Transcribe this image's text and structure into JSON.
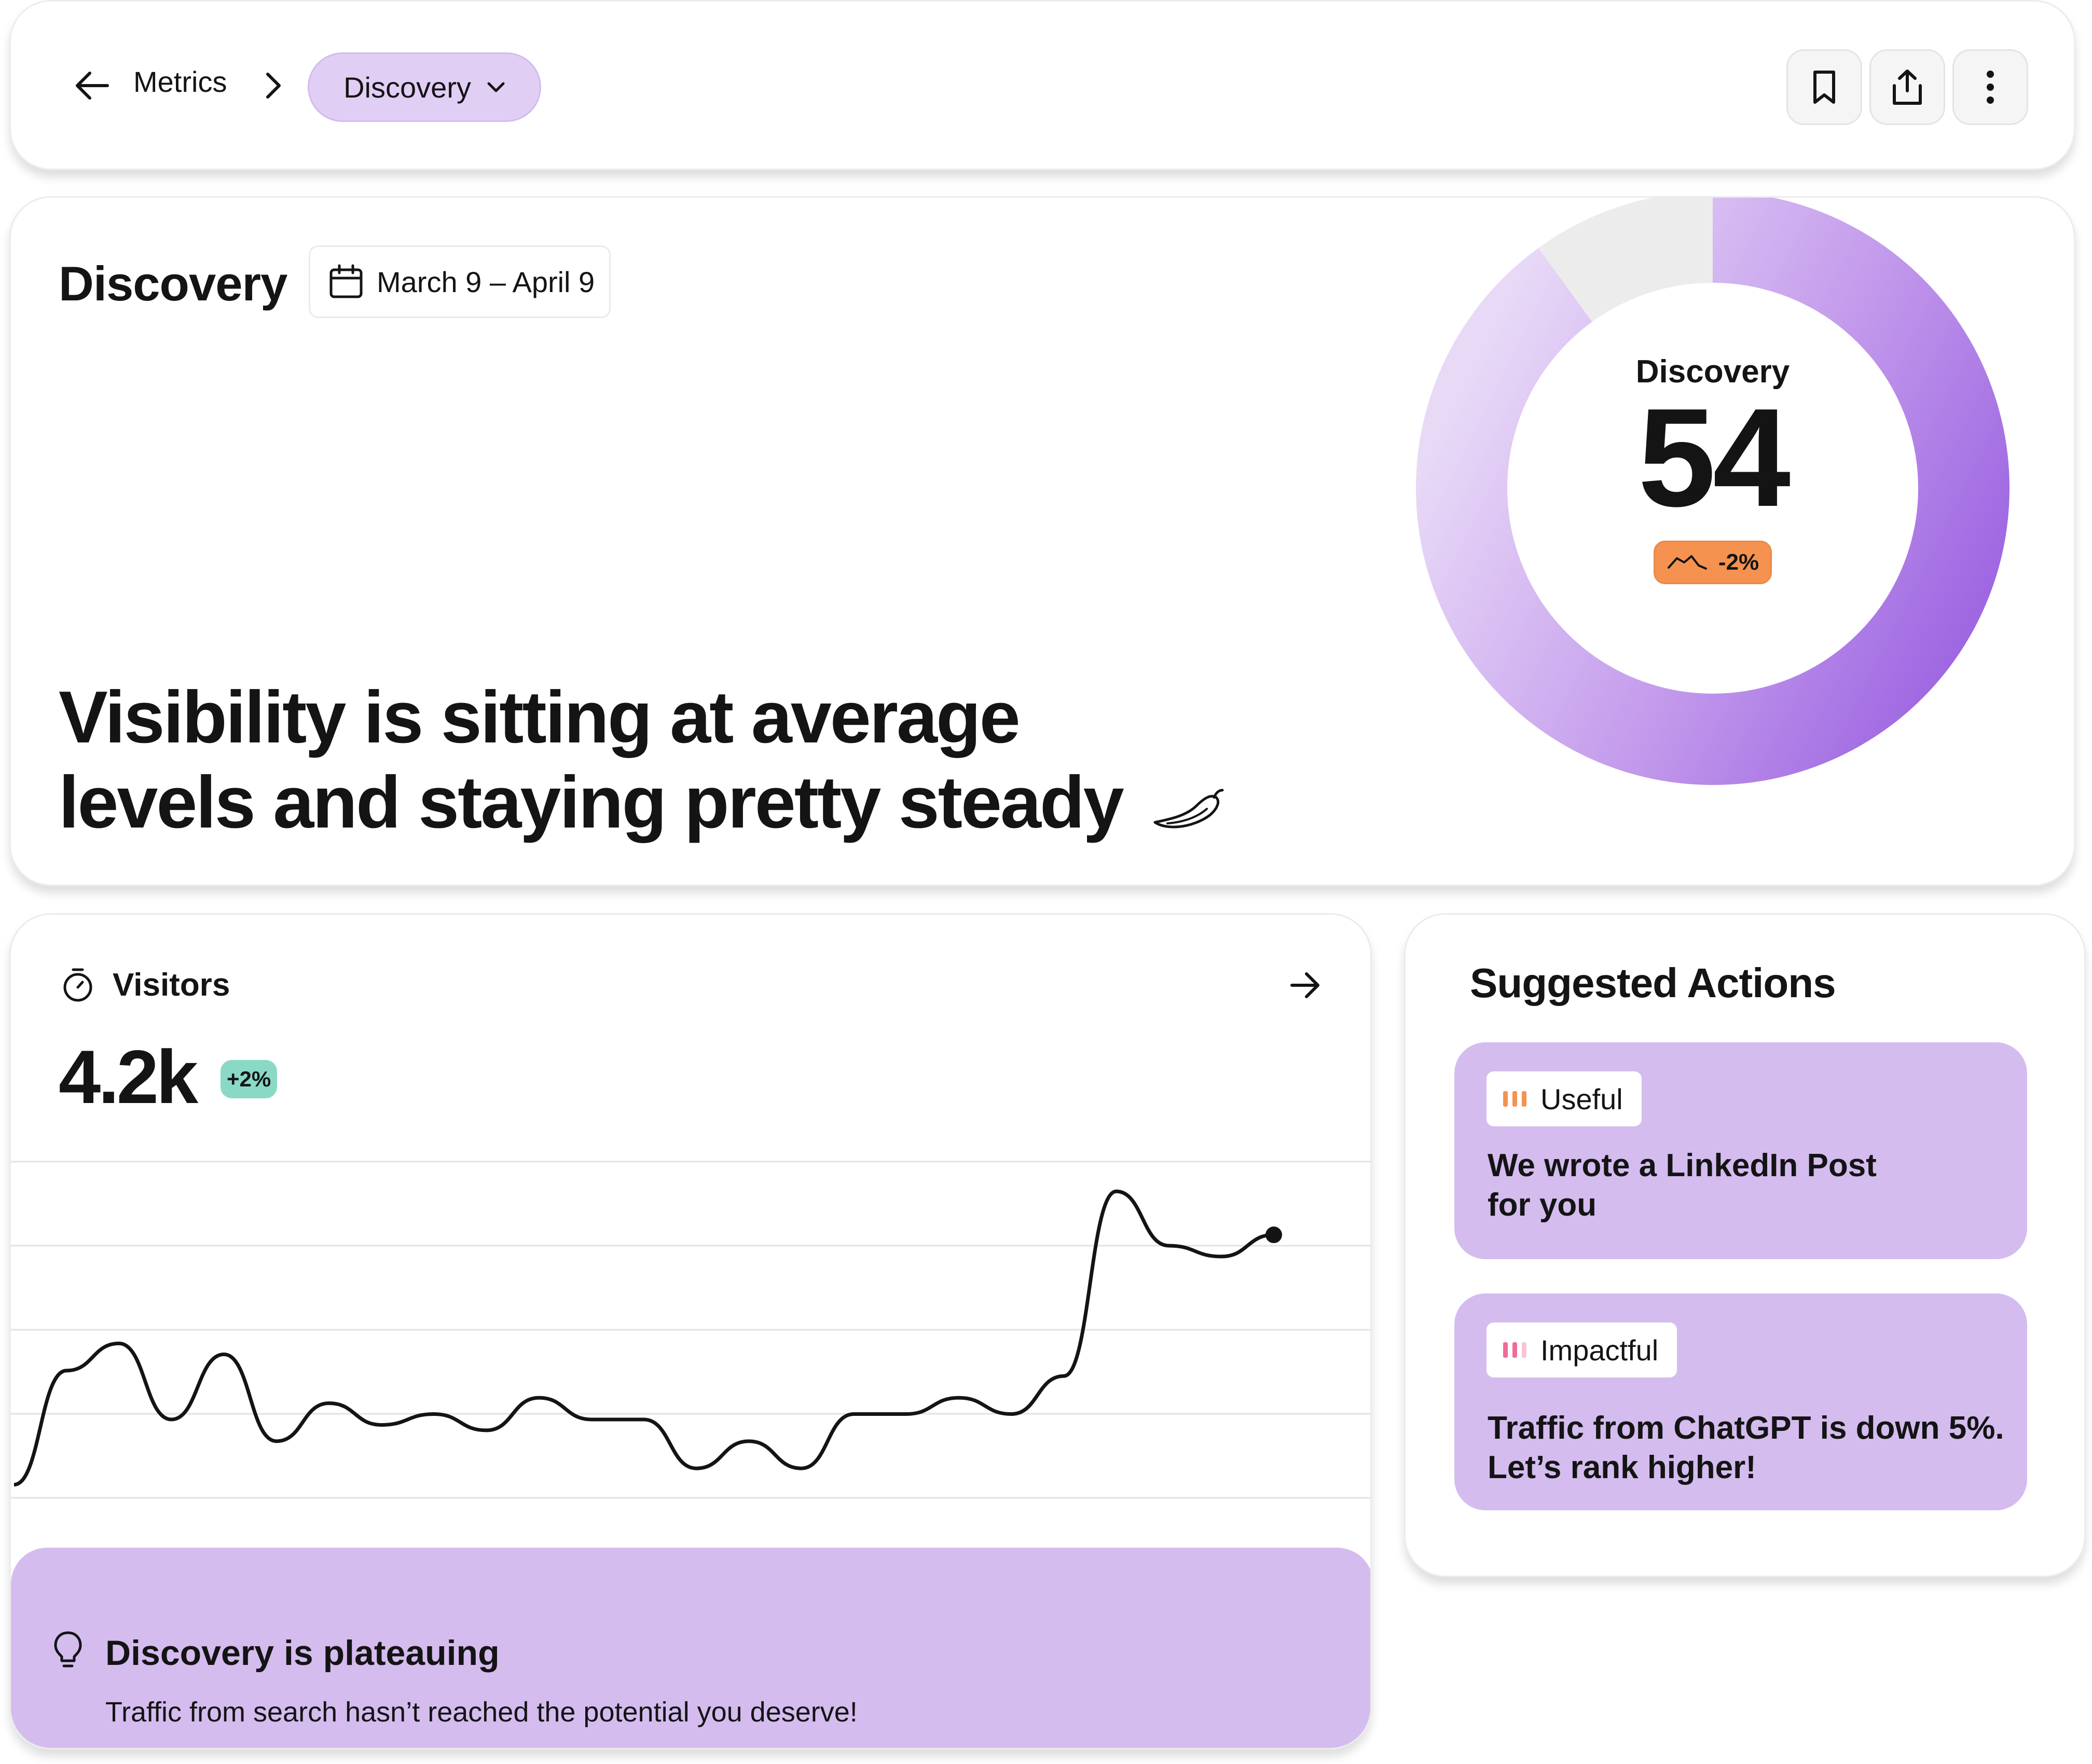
{
  "nav": {
    "back_icon": "arrow-left-icon",
    "crumb": "Metrics",
    "separator_icon": "chevron-right-icon",
    "current": "Discovery",
    "dropdown_icon": "chevron-down-icon",
    "actions": [
      "bookmark-icon",
      "share-icon",
      "more-vertical-icon"
    ]
  },
  "hero": {
    "title": "Discovery",
    "date_range": "March 9 – April 9",
    "headline_line1": "Visibility is sitting at average",
    "headline_line2": "levels and staying pretty steady",
    "headline_icon": "chili-pepper-icon",
    "score": {
      "label": "Discovery",
      "value": "54",
      "change": "-2%",
      "change_icon": "trend-down-icon",
      "fill_fraction": 0.9,
      "colors": {
        "track": "#ececec",
        "fill_light": "#e6d6f6",
        "fill_dark": "#a46fe3",
        "change_bg": "#f5924f"
      }
    }
  },
  "visitors": {
    "icon": "stopwatch-icon",
    "label": "Visitors",
    "value": "4.2k",
    "change": "+2%",
    "change_color": "#8ad9c6",
    "open_icon": "arrow-right-icon",
    "chart_data": {
      "type": "line",
      "grid": true,
      "series": [
        {
          "values": [
            1.5,
            12,
            14.5,
            7.5,
            13.5,
            5.5,
            9,
            7,
            8,
            6.5,
            9.5,
            7.5,
            7.5,
            3,
            5.5,
            3,
            8,
            8,
            9.5,
            8,
            11.5,
            28.5,
            23.5,
            22.5,
            24.5
          ]
        }
      ]
    },
    "insight": {
      "icon": "lightbulb-icon",
      "title": "Discovery is plateauing",
      "text": "Traffic from search hasn’t reached the potential you deserve!"
    }
  },
  "suggested": {
    "title": "Suggested Actions",
    "items": [
      {
        "tag": "Useful",
        "tag_icon": "priority-bars-icon",
        "tag_color": "#f5924f",
        "text_line1": "We wrote a LinkedIn Post",
        "text_line2": "for you"
      },
      {
        "tag": "Impactful",
        "tag_icon": "priority-bars-icon",
        "tag_color": "#f06b9a",
        "text_line1": "Traffic from ChatGPT is down 5%.",
        "text_line2": "Let’s rank higher!"
      }
    ]
  }
}
